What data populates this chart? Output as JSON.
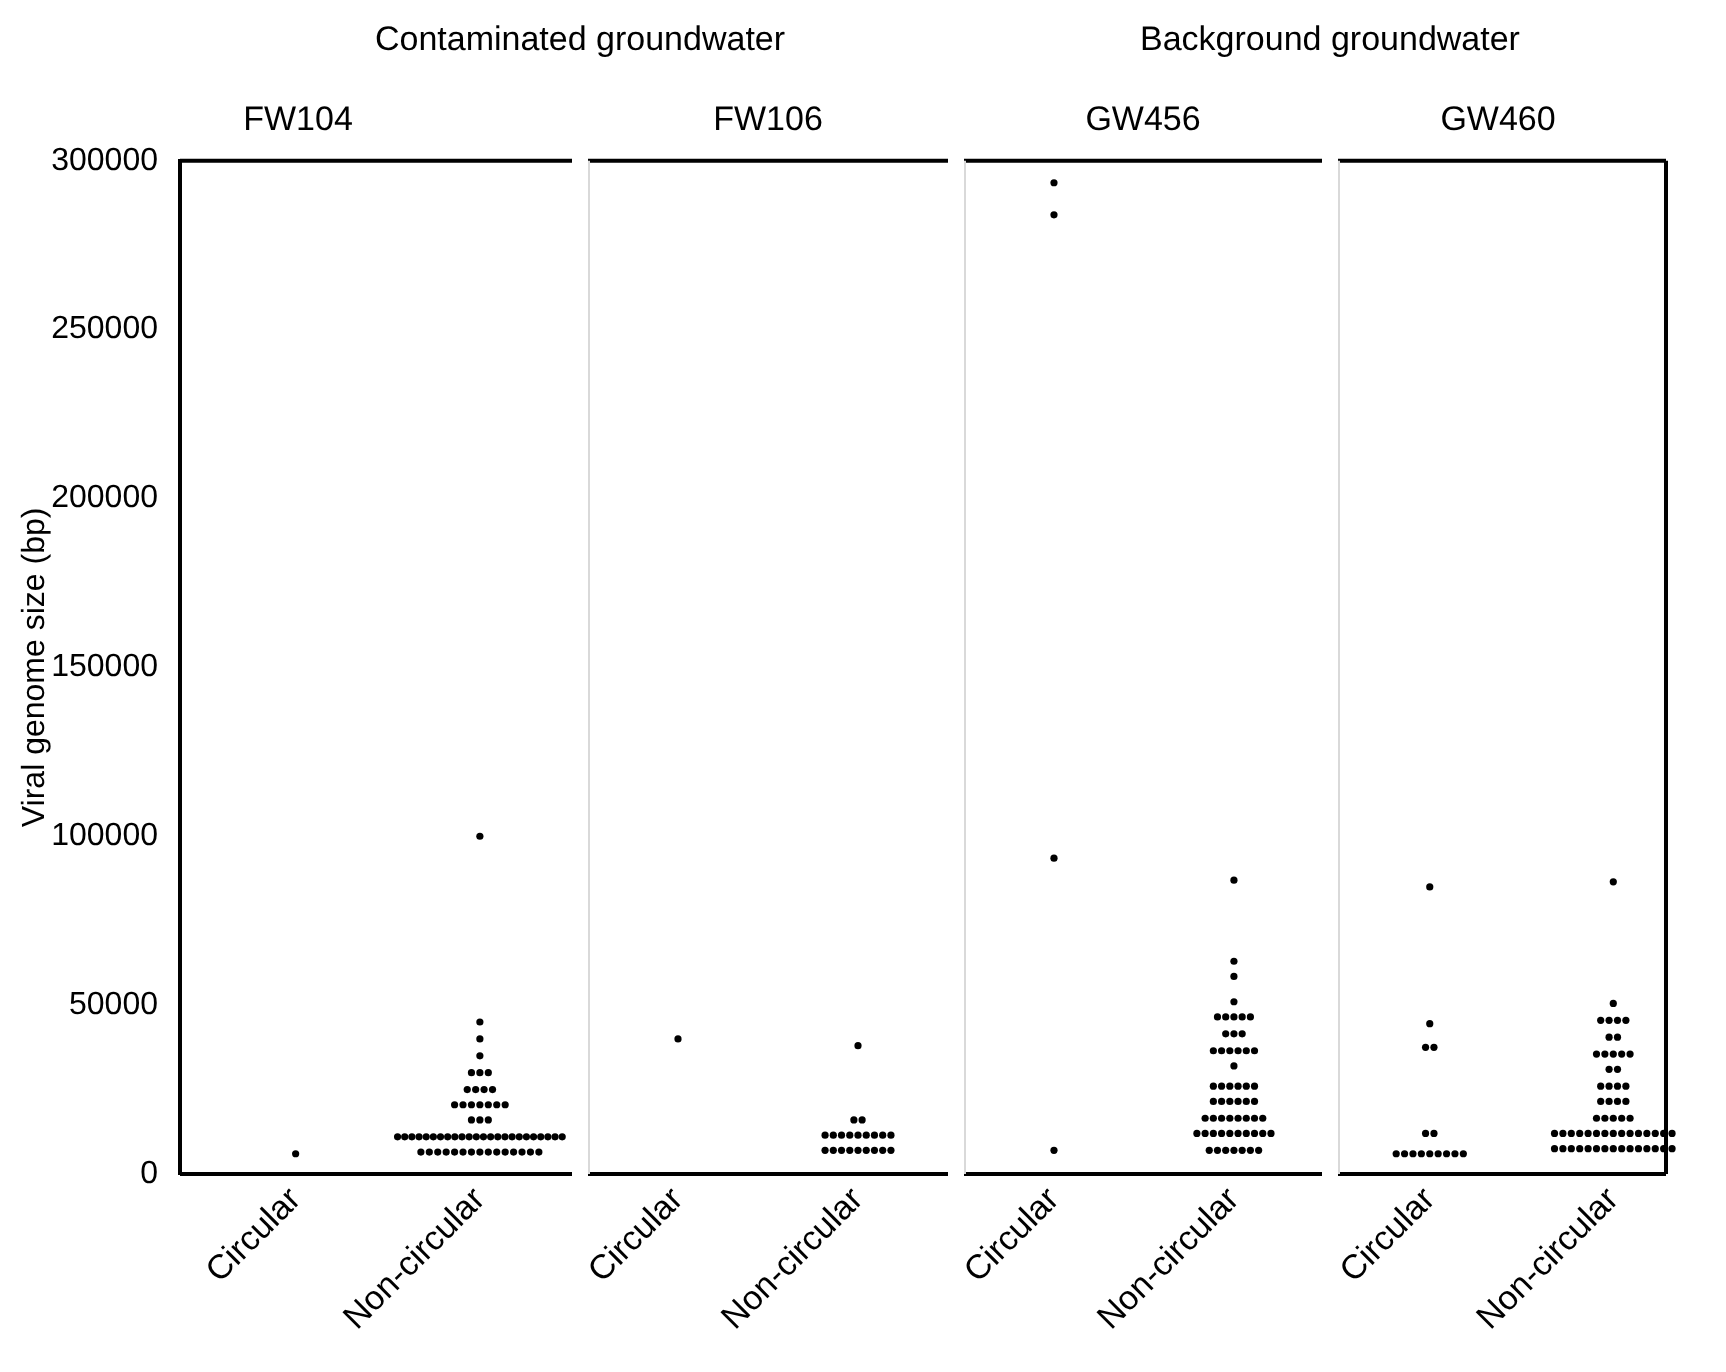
{
  "chart_data": [
    {
      "type": "scatter",
      "title": "FW104",
      "ylabel": "Viral genome size (bp)",
      "annotations": [
        "Contaminated groundwater"
      ],
      "categories": [
        "Circular",
        "Non-circular"
      ],
      "ylim": [
        0,
        300000
      ],
      "yticks": [
        0,
        50000,
        100000,
        150000,
        200000,
        250000,
        300000
      ],
      "marker": "circle",
      "series": [
        {
          "color": "#000000",
          "x": [
            "Circular",
            "Non-circular",
            "Non-circular",
            "Non-circular",
            "Non-circular",
            "Non-circular",
            "Non-circular",
            "Non-circular",
            "Non-circular",
            "Non-circular",
            "Non-circular",
            "Non-circular",
            "Non-circular",
            "Non-circular",
            "Non-circular",
            "Non-circular",
            "Non-circular",
            "Non-circular",
            "Non-circular",
            "Non-circular",
            "Non-circular",
            "Non-circular",
            "Non-circular",
            "Non-circular",
            "Non-circular",
            "Non-circular",
            "Non-circular",
            "Non-circular",
            "Non-circular",
            "Non-circular",
            "Non-circular",
            "Non-circular",
            "Non-circular",
            "Non-circular",
            "Non-circular",
            "Non-circular",
            "Non-circular",
            "Non-circular",
            "Non-circular",
            "Non-circular",
            "Non-circular",
            "Non-circular",
            "Non-circular",
            "Non-circular",
            "Non-circular",
            "Non-circular",
            "Non-circular",
            "Non-circular",
            "Non-circular",
            "Non-circular",
            "Non-circular",
            "Non-circular",
            "Non-circular",
            "Non-circular",
            "Non-circular",
            "Non-circular",
            "Non-circular",
            "Non-circular",
            "Non-circular",
            "Non-circular",
            "Non-circular"
          ],
          "values": [
            6000,
            100000,
            45000,
            40000,
            35000,
            30000,
            30000,
            30000,
            25000,
            25000,
            25000,
            25000,
            20500,
            20500,
            20500,
            20500,
            20500,
            20500,
            20500,
            16000,
            16000,
            16000,
            11000,
            11000,
            11000,
            11000,
            11000,
            11000,
            11000,
            11000,
            11000,
            11000,
            11000,
            11000,
            11000,
            11000,
            11000,
            11000,
            11000,
            11000,
            11000,
            11000,
            11000,
            11000,
            11000,
            11000,
            6500,
            6500,
            6500,
            6500,
            6500,
            6500,
            6500,
            6500,
            6500,
            6500,
            6500,
            6500,
            6500,
            6500,
            6500
          ]
        }
      ]
    },
    {
      "type": "scatter",
      "title": "FW106",
      "categories": [
        "Circular",
        "Non-circular"
      ],
      "ylim": [
        0,
        300000
      ],
      "yticks": [
        0,
        50000,
        100000,
        150000,
        200000,
        250000,
        300000
      ],
      "tick_labels": "x",
      "marker": "circle",
      "series": [
        {
          "color": "#000000",
          "x": [
            "Circular",
            "Non-circular",
            "Non-circular",
            "Non-circular",
            "Non-circular",
            "Non-circular",
            "Non-circular",
            "Non-circular",
            "Non-circular",
            "Non-circular",
            "Non-circular",
            "Non-circular",
            "Non-circular",
            "Non-circular",
            "Non-circular",
            "Non-circular",
            "Non-circular",
            "Non-circular",
            "Non-circular",
            "Non-circular",
            "Non-circular",
            "Non-circular"
          ],
          "values": [
            40000,
            38000,
            16000,
            16000,
            11500,
            11500,
            11500,
            11500,
            11500,
            11500,
            11500,
            11500,
            11500,
            7000,
            7000,
            7000,
            7000,
            7000,
            7000,
            7000,
            7000,
            7000
          ]
        }
      ]
    },
    {
      "type": "scatter",
      "title": "GW456",
      "annotations": [
        "Background groundwater"
      ],
      "categories": [
        "Circular",
        "Non-circular"
      ],
      "ylim": [
        0,
        300000
      ],
      "yticks": [
        0,
        50000,
        100000,
        150000,
        200000,
        250000,
        300000
      ],
      "tick_labels": "x",
      "marker": "circle",
      "series": [
        {
          "color": "#000000",
          "x": [
            "Circular",
            "Circular",
            "Circular",
            "Circular",
            "Non-circular",
            "Non-circular",
            "Non-circular",
            "Non-circular",
            "Non-circular",
            "Non-circular",
            "Non-circular",
            "Non-circular",
            "Non-circular",
            "Non-circular",
            "Non-circular",
            "Non-circular",
            "Non-circular",
            "Non-circular",
            "Non-circular",
            "Non-circular",
            "Non-circular",
            "Non-circular",
            "Non-circular",
            "Non-circular",
            "Non-circular",
            "Non-circular",
            "Non-circular",
            "Non-circular",
            "Non-circular",
            "Non-circular",
            "Non-circular",
            "Non-circular",
            "Non-circular",
            "Non-circular",
            "Non-circular",
            "Non-circular",
            "Non-circular",
            "Non-circular",
            "Non-circular",
            "Non-circular",
            "Non-circular",
            "Non-circular",
            "Non-circular",
            "Non-circular",
            "Non-circular",
            "Non-circular",
            "Non-circular",
            "Non-circular",
            "Non-circular",
            "Non-circular",
            "Non-circular",
            "Non-circular",
            "Non-circular",
            "Non-circular",
            "Non-circular",
            "Non-circular",
            "Non-circular",
            "Non-circular",
            "Non-circular",
            "Non-circular"
          ],
          "values": [
            293500,
            284000,
            93500,
            7000,
            87000,
            63000,
            58500,
            51000,
            46500,
            46500,
            46500,
            46500,
            46500,
            41500,
            41500,
            41500,
            36500,
            36500,
            36500,
            36500,
            36500,
            36500,
            32000,
            26000,
            26000,
            26000,
            26000,
            26000,
            26000,
            21500,
            21500,
            21500,
            21500,
            21500,
            21500,
            16500,
            16500,
            16500,
            16500,
            16500,
            16500,
            16500,
            16500,
            12000,
            12000,
            12000,
            12000,
            12000,
            12000,
            12000,
            12000,
            12000,
            12000,
            7000,
            7000,
            7000,
            7000,
            7000,
            7000,
            7000
          ]
        }
      ]
    },
    {
      "type": "scatter",
      "title": "GW460",
      "categories": [
        "Circular",
        "Non-circular"
      ],
      "ylim": [
        0,
        300000
      ],
      "yticks": [
        0,
        50000,
        100000,
        150000,
        200000,
        250000,
        300000
      ],
      "tick_labels": "x",
      "marker": "circle",
      "series": [
        {
          "color": "#000000",
          "x": [
            "Circular",
            "Circular",
            "Circular",
            "Circular",
            "Circular",
            "Circular",
            "Circular",
            "Circular",
            "Circular",
            "Circular",
            "Circular",
            "Circular",
            "Circular",
            "Circular",
            "Circular",
            "Non-circular",
            "Non-circular",
            "Non-circular",
            "Non-circular",
            "Non-circular",
            "Non-circular",
            "Non-circular",
            "Non-circular",
            "Non-circular",
            "Non-circular",
            "Non-circular",
            "Non-circular",
            "Non-circular",
            "Non-circular",
            "Non-circular",
            "Non-circular",
            "Non-circular",
            "Non-circular",
            "Non-circular",
            "Non-circular",
            "Non-circular",
            "Non-circular",
            "Non-circular",
            "Non-circular",
            "Non-circular",
            "Non-circular",
            "Non-circular",
            "Non-circular",
            "Non-circular",
            "Non-circular",
            "Non-circular",
            "Non-circular",
            "Non-circular",
            "Non-circular",
            "Non-circular",
            "Non-circular",
            "Non-circular",
            "Non-circular",
            "Non-circular",
            "Non-circular",
            "Non-circular",
            "Non-circular",
            "Non-circular",
            "Non-circular",
            "Non-circular",
            "Non-circular",
            "Non-circular",
            "Non-circular",
            "Non-circular",
            "Non-circular",
            "Non-circular",
            "Non-circular",
            "Non-circular",
            "Non-circular",
            "Non-circular",
            "Non-circular",
            "Non-circular",
            "Non-circular"
          ],
          "values": [
            85000,
            44500,
            37500,
            37500,
            12000,
            12000,
            6000,
            6000,
            6000,
            6000,
            6000,
            6000,
            6000,
            6000,
            6000,
            86500,
            50500,
            45500,
            45500,
            45500,
            45500,
            40500,
            40500,
            35500,
            35500,
            35500,
            35500,
            35500,
            31000,
            31000,
            26000,
            26000,
            26000,
            26000,
            21500,
            21500,
            21500,
            21500,
            16500,
            16500,
            16500,
            16500,
            16500,
            12000,
            12000,
            12000,
            12000,
            12000,
            12000,
            12000,
            12000,
            12000,
            12000,
            12000,
            12000,
            12000,
            12000,
            12000,
            7500,
            7500,
            7500,
            7500,
            7500,
            7500,
            7500,
            7500,
            7500,
            7500,
            7500,
            7500,
            7500,
            7500,
            7500
          ]
        }
      ]
    }
  ]
}
